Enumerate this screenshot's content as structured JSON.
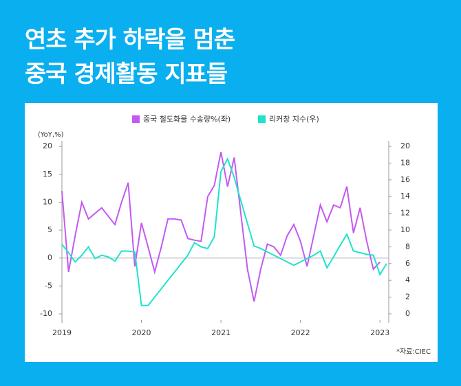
{
  "header": {
    "title_lines": [
      "연초 추가 하락을 멈춘",
      "중국 경제활동 지표들"
    ]
  },
  "chart_data": {
    "type": "line",
    "y_label": "(YoY,%)",
    "source": "*자료:CIEC",
    "categories": [
      "2019",
      null,
      null,
      null,
      null,
      null,
      null,
      null,
      null,
      null,
      null,
      null,
      "2020",
      null,
      null,
      null,
      null,
      null,
      null,
      null,
      null,
      null,
      null,
      null,
      "2021",
      null,
      null,
      null,
      null,
      null,
      null,
      null,
      null,
      null,
      null,
      null,
      "2022",
      null,
      null,
      null,
      null,
      null,
      null,
      null,
      null,
      null,
      null,
      null,
      "2023",
      null
    ],
    "series": [
      {
        "name": "중국 철도화물 수송량%(좌)",
        "color": "#c459f2",
        "axis": "y",
        "values": [
          12,
          -2.5,
          4,
          10,
          7,
          8,
          9,
          7.5,
          6,
          10,
          13.5,
          -1.5,
          6.3,
          2,
          -2.5,
          2,
          7,
          7,
          6.8,
          3.5,
          3.2,
          3,
          11,
          13,
          19,
          12.8,
          18,
          8,
          -2,
          -7.8,
          -2,
          2.5,
          2,
          0.5,
          4,
          6,
          3,
          -1.5,
          4,
          9.5,
          6.5,
          9.5,
          9,
          12.8,
          4.5,
          9,
          3,
          -2,
          -0.7,
          null
        ]
      },
      {
        "name": "리커창 지수(우)",
        "color": "#1fe3cb",
        "axis": "y2",
        "values": [
          8.3,
          7.3,
          6.2,
          7,
          8,
          6.6,
          7,
          6.8,
          6.3,
          7.5,
          7.5,
          7.4,
          1,
          1,
          2,
          3,
          4,
          5,
          6,
          7,
          8.5,
          8,
          7.8,
          9.2,
          17,
          18.5,
          16.3,
          13.5,
          10.8,
          8.1,
          7.8,
          7.4,
          7,
          6.6,
          6.2,
          5.8,
          6.2,
          6.6,
          7,
          7.5,
          5.5,
          6.8,
          8.2,
          9.5,
          7.5,
          7.3,
          7.1,
          7,
          4.7,
          6
        ]
      }
    ],
    "ylim": [
      -11.6,
      21
    ],
    "yticks": [
      20,
      15,
      10,
      5,
      0,
      -5,
      -10
    ],
    "y2lim": [
      -1.07,
      20.66
    ],
    "y2ticks": [
      0,
      2,
      4,
      6,
      8,
      10,
      12,
      14,
      16,
      18,
      20
    ],
    "legend": "top"
  }
}
